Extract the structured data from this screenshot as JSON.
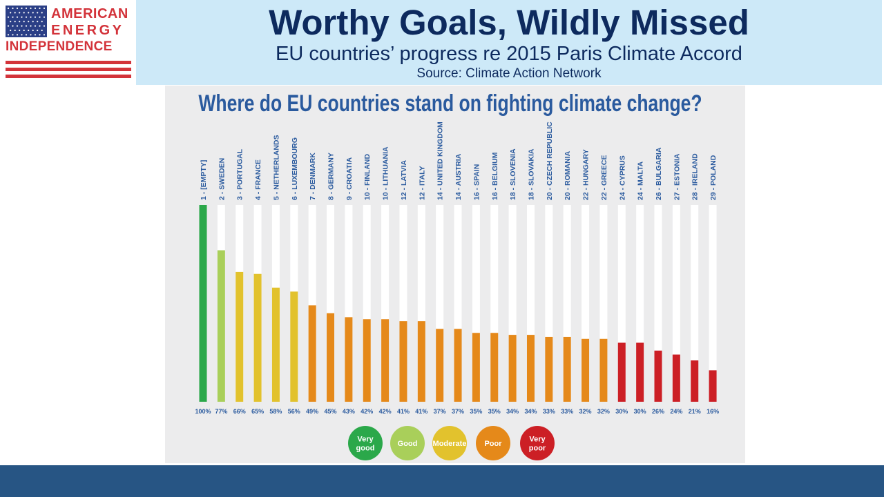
{
  "logo": {
    "line1": "AMERICAN",
    "line2": "ENERGY",
    "line3": "INDEPENDENCE",
    "tm": "™"
  },
  "header": {
    "title": "Worthy Goals, Wildly Missed",
    "subtitle": "EU countries’ progress re 2015 Paris Climate Accord",
    "source": "Source: Climate Action Network"
  },
  "colors": {
    "very_good": "#2ba84a",
    "good": "#a9cf5a",
    "moderate": "#e2c22d",
    "poor": "#e5891a",
    "very_poor": "#cc1f25",
    "header_band": "#cde9f8",
    "title_text": "#0d2a5e",
    "chart_title": "#2a5a9e",
    "footer_band": "#275584"
  },
  "chart_data": {
    "type": "bar",
    "title": "Where do EU countries stand on fighting climate change?",
    "categories": [
      "1 - [EMPTY]",
      "2 - SWEDEN",
      "3 - PORTUGAL",
      "4 - FRANCE",
      "5 - NETHERLANDS",
      "6 - LUXEMBOURG",
      "7 - DENMARK",
      "8 - GERMANY",
      "9 - CROATIA",
      "10 - FINLAND",
      "10 - LITHUANIA",
      "12 - LATVIA",
      "12 - ITALY",
      "14 - UNITED KINGDOM",
      "14 - AUSTRIA",
      "16 - SPAIN",
      "16 - BELGIUM",
      "18 - SLOVENIA",
      "18 - SLOVAKIA",
      "20 - CZECH REPUBLIC",
      "20 - ROMANIA",
      "22 - HUNGARY",
      "22 - GREECE",
      "24 - CYPRUS",
      "24 - MALTA",
      "26 - BULGARIA",
      "27 - ESTONIA",
      "28 - IRELAND",
      "29 - POLAND"
    ],
    "values": [
      100,
      77,
      66,
      65,
      58,
      56,
      49,
      45,
      43,
      42,
      42,
      41,
      41,
      37,
      37,
      35,
      35,
      34,
      34,
      33,
      33,
      32,
      32,
      30,
      30,
      26,
      24,
      21,
      16
    ],
    "value_labels": [
      "100%",
      "77%",
      "66%",
      "65%",
      "58%",
      "56%",
      "49%",
      "45%",
      "43%",
      "42%",
      "42%",
      "41%",
      "41%",
      "37%",
      "37%",
      "35%",
      "35%",
      "34%",
      "34%",
      "33%",
      "33%",
      "32%",
      "32%",
      "30%",
      "30%",
      "26%",
      "24%",
      "21%",
      "16%"
    ],
    "ratings": [
      "very_good",
      "good",
      "moderate",
      "moderate",
      "moderate",
      "moderate",
      "poor",
      "poor",
      "poor",
      "poor",
      "poor",
      "poor",
      "poor",
      "poor",
      "poor",
      "poor",
      "poor",
      "poor",
      "poor",
      "poor",
      "poor",
      "poor",
      "poor",
      "very_poor",
      "very_poor",
      "very_poor",
      "very_poor",
      "very_poor",
      "very_poor"
    ],
    "ylim": [
      0,
      100
    ],
    "grid": false,
    "legend": [
      {
        "key": "very_good",
        "lines": [
          "Very",
          "good"
        ]
      },
      {
        "key": "good",
        "lines": [
          "Good"
        ]
      },
      {
        "key": "moderate",
        "lines": [
          "Moderate"
        ]
      },
      {
        "key": "poor",
        "lines": [
          "Poor"
        ]
      },
      {
        "key": "very_poor",
        "lines": [
          "Very",
          "poor"
        ]
      }
    ],
    "legend_position": "bottom-center"
  }
}
